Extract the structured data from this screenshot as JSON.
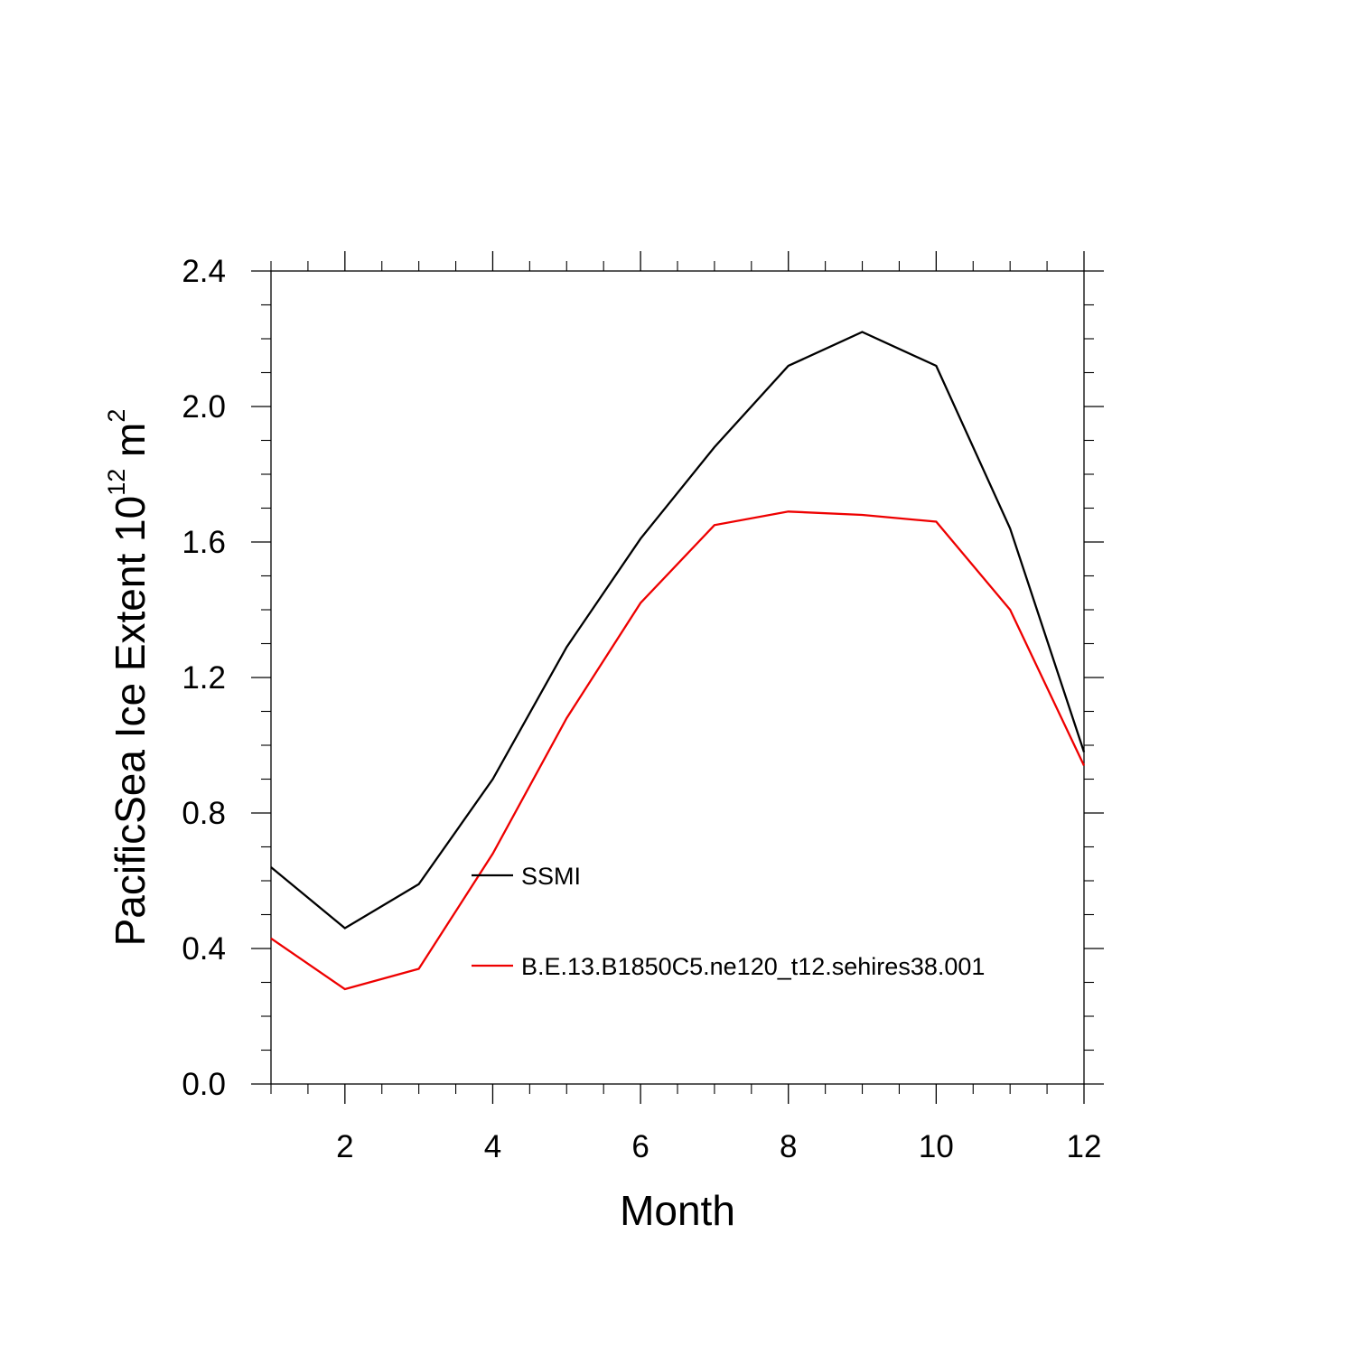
{
  "chart_data": {
    "type": "line",
    "title": "",
    "xlabel": "Month",
    "ylabel": {
      "prefix": "PacificSea Ice Extent 10",
      "exp": "12",
      "unit": " m",
      "unit_exp": "2"
    },
    "xlim": [
      1,
      12
    ],
    "ylim": [
      0,
      2.4
    ],
    "x_ticks": [
      2,
      4,
      6,
      8,
      10,
      12
    ],
    "x_tick_labels": [
      "2",
      "4",
      "6",
      "8",
      "10",
      "12"
    ],
    "y_ticks": [
      0,
      0.4,
      0.8,
      1.2,
      1.6,
      2.0,
      2.4
    ],
    "y_tick_labels": [
      "0.0",
      "0.4",
      "0.8",
      "1.2",
      "1.6",
      "2.0",
      "2.4"
    ],
    "x_minor_step": 0.5,
    "y_minor_step": 0.1,
    "grid": false,
    "legend_position": "center",
    "x": [
      1,
      2,
      3,
      4,
      5,
      6,
      7,
      8,
      9,
      10,
      11,
      12
    ],
    "series": [
      {
        "name": "SSMI",
        "color": "#000000",
        "values": [
          0.64,
          0.46,
          0.59,
          0.9,
          1.29,
          1.61,
          1.88,
          2.12,
          2.22,
          2.12,
          1.64,
          0.98
        ]
      },
      {
        "name": "B.E.13.B1850C5.ne120_t12.sehires38.001",
        "color": "#ee0000",
        "values": [
          0.43,
          0.28,
          0.34,
          0.68,
          1.08,
          1.42,
          1.65,
          1.69,
          1.68,
          1.66,
          1.4,
          0.94
        ]
      }
    ]
  }
}
